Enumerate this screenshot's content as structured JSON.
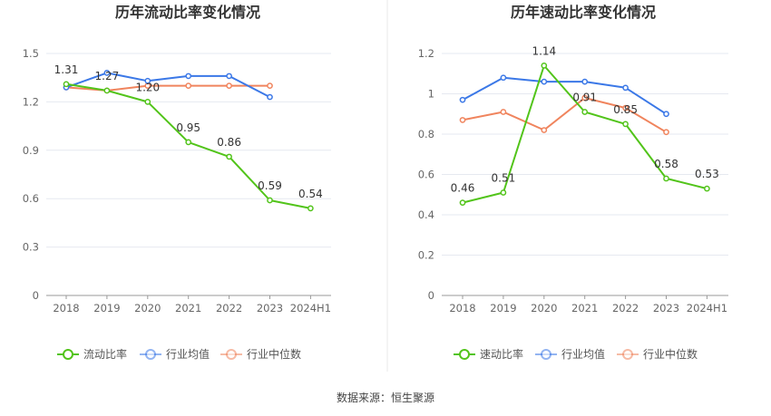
{
  "source_text": "数据来源：恒生聚源",
  "chart_data": [
    {
      "type": "line",
      "title": "历年流动比率变化情况",
      "categories": [
        "2018",
        "2019",
        "2020",
        "2021",
        "2022",
        "2023",
        "2024H1"
      ],
      "ylim": [
        0,
        1.5
      ],
      "yticks": [
        "0",
        "0.3",
        "0.6",
        "0.9",
        "1.2",
        "1.5"
      ],
      "ytick_values": [
        0,
        0.3,
        0.6,
        0.9,
        1.2,
        1.5
      ],
      "grid": true,
      "legend_position": "bottom",
      "series": [
        {
          "name": "流动比率",
          "color": "#52c41a",
          "values": [
            1.31,
            1.27,
            1.2,
            0.95,
            0.86,
            0.59,
            0.54
          ],
          "labels": [
            "1.31",
            "1.27",
            "1.20",
            "0.95",
            "0.86",
            "0.59",
            "0.54"
          ]
        },
        {
          "name": "行业均值",
          "color": "#3b78e7",
          "values": [
            1.29,
            1.38,
            1.33,
            1.36,
            1.36,
            1.23,
            null
          ]
        },
        {
          "name": "行业中位数",
          "color": "#f0845d",
          "values": [
            1.29,
            1.27,
            1.3,
            1.3,
            1.3,
            1.3,
            null
          ]
        }
      ]
    },
    {
      "type": "line",
      "title": "历年速动比率变化情况",
      "categories": [
        "2018",
        "2019",
        "2020",
        "2021",
        "2022",
        "2023",
        "2024H1"
      ],
      "ylim": [
        0,
        1.2
      ],
      "yticks": [
        "0",
        "0.2",
        "0.4",
        "0.6",
        "0.8",
        "1",
        "1.2"
      ],
      "ytick_values": [
        0,
        0.2,
        0.4,
        0.6,
        0.8,
        1.0,
        1.2
      ],
      "grid": true,
      "legend_position": "bottom",
      "series": [
        {
          "name": "速动比率",
          "color": "#52c41a",
          "values": [
            0.46,
            0.51,
            1.14,
            0.91,
            0.85,
            0.58,
            0.53
          ],
          "labels": [
            "0.46",
            "0.51",
            "1.14",
            "0.91",
            "0.85",
            "0.58",
            "0.53"
          ]
        },
        {
          "name": "行业均值",
          "color": "#3b78e7",
          "values": [
            0.97,
            1.08,
            1.06,
            1.06,
            1.03,
            0.9,
            null
          ]
        },
        {
          "name": "行业中位数",
          "color": "#f0845d",
          "values": [
            0.87,
            0.91,
            0.82,
            0.98,
            0.93,
            0.81,
            null
          ]
        }
      ]
    }
  ]
}
